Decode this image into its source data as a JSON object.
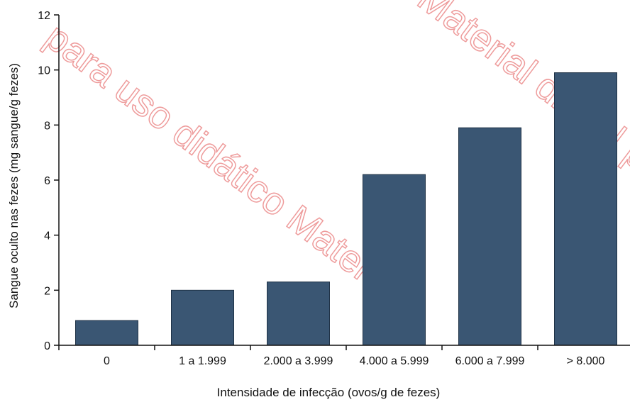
{
  "watermark": {
    "text_1": "para uso didático Material",
    "text_2": "Material digital para",
    "color": "#e14b4b"
  },
  "chart_data": {
    "type": "bar",
    "categories": [
      "0",
      "1 a 1.999",
      "2.000 a 3.999",
      "4.000 a 5.999",
      "6.000 a 7.999",
      "> 8.000"
    ],
    "values": [
      0.9,
      2.0,
      2.3,
      6.2,
      7.9,
      9.9
    ],
    "title": "",
    "xlabel": "Intensidade de infecção (ovos/g de fezes)",
    "ylabel": "Sangue oculto nas fezes (mg sangue/g fezes)",
    "ylim": [
      0,
      12
    ],
    "yticks": [
      0,
      2,
      4,
      6,
      8,
      10,
      12
    ],
    "grid": false,
    "legend": "none",
    "bar_color": "#3a5673"
  }
}
